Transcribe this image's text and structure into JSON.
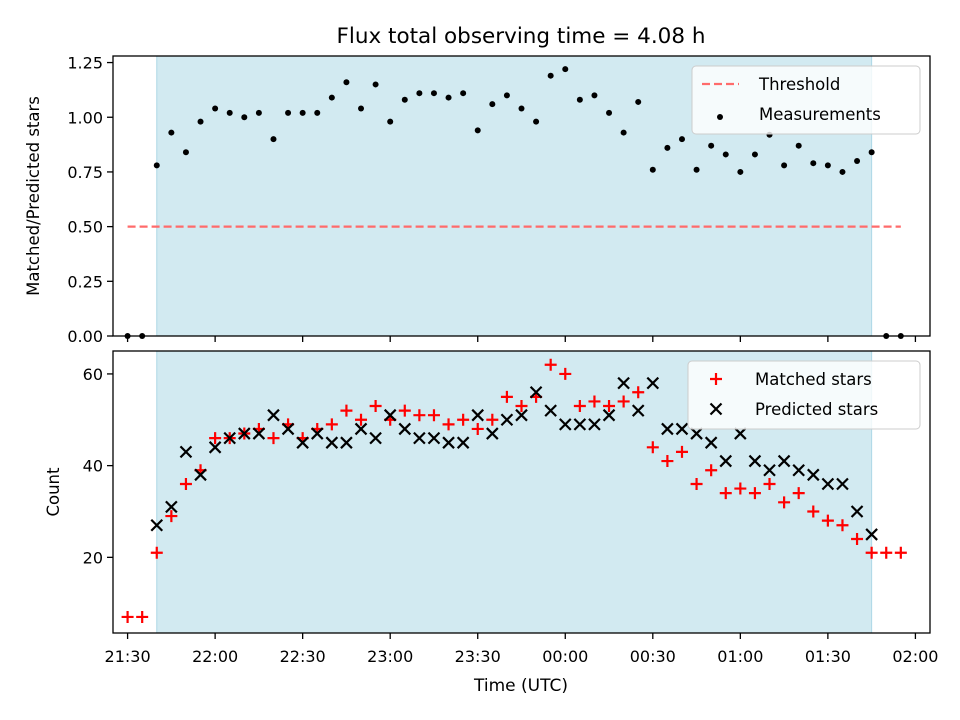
{
  "figure": {
    "title": "Flux total observing time = 4.08 h",
    "xlabel": "Time (UTC)"
  },
  "chart_data": [
    {
      "type": "scatter",
      "panel": "top",
      "ylabel": "Matched/Predicted stars",
      "xlim": [
        "21:25",
        "02:05"
      ],
      "ylim": [
        0,
        1.28
      ],
      "x_ticks": [
        "21:30",
        "22:00",
        "22:30",
        "23:00",
        "23:30",
        "00:00",
        "00:30",
        "01:00",
        "01:30",
        "02:00"
      ],
      "y_ticks": [
        "0.00",
        "0.25",
        "0.50",
        "0.75",
        "1.00",
        "1.25"
      ],
      "observing_window": {
        "start": "21:40",
        "end": "01:45",
        "color": "#add8e6"
      },
      "legend": "top-right",
      "series": [
        {
          "name": "Threshold",
          "style": "dashed-line",
          "color": "#ff6b6b",
          "x": [
            "21:30",
            "01:55"
          ],
          "y": [
            0.5,
            0.5
          ]
        },
        {
          "name": "Measurements",
          "style": "dot",
          "color": "#000000",
          "x": [
            "21:30",
            "21:35",
            "21:40",
            "21:45",
            "21:50",
            "21:55",
            "22:00",
            "22:05",
            "22:10",
            "22:15",
            "22:20",
            "22:25",
            "22:30",
            "22:35",
            "22:40",
            "22:45",
            "22:50",
            "22:55",
            "23:00",
            "23:05",
            "23:10",
            "23:15",
            "23:20",
            "23:25",
            "23:30",
            "23:35",
            "23:40",
            "23:45",
            "23:50",
            "23:55",
            "00:00",
            "00:05",
            "00:10",
            "00:15",
            "00:20",
            "00:25",
            "00:30",
            "00:35",
            "00:40",
            "00:45",
            "00:50",
            "00:55",
            "01:00",
            "01:05",
            "01:10",
            "01:15",
            "01:20",
            "01:25",
            "01:30",
            "01:35",
            "01:40",
            "01:45",
            "01:50",
            "01:55"
          ],
          "y": [
            0,
            0,
            0.78,
            0.93,
            0.84,
            0.98,
            1.04,
            1.02,
            1.0,
            1.02,
            0.9,
            1.02,
            1.02,
            1.02,
            1.09,
            1.16,
            1.04,
            1.15,
            0.98,
            1.08,
            1.11,
            1.11,
            1.09,
            1.11,
            0.94,
            1.06,
            1.1,
            1.04,
            0.98,
            1.19,
            1.22,
            1.08,
            1.1,
            1.02,
            0.93,
            1.07,
            0.76,
            0.86,
            0.9,
            0.76,
            0.87,
            0.83,
            0.75,
            0.83,
            0.92,
            0.78,
            0.87,
            0.79,
            0.78,
            0.75,
            0.8,
            0.84,
            0,
            0
          ]
        }
      ]
    },
    {
      "type": "scatter",
      "panel": "bottom",
      "ylabel": "Count",
      "xlabel": "Time (UTC)",
      "xlim": [
        "21:25",
        "02:05"
      ],
      "ylim": [
        3.5,
        65
      ],
      "x_ticks": [
        "21:30",
        "22:00",
        "22:30",
        "23:00",
        "23:30",
        "00:00",
        "00:30",
        "01:00",
        "01:30",
        "02:00"
      ],
      "y_ticks": [
        "20",
        "40",
        "60"
      ],
      "observing_window": {
        "start": "21:40",
        "end": "01:45",
        "color": "#add8e6"
      },
      "legend": "top-right",
      "series": [
        {
          "name": "Matched stars",
          "marker": "plus",
          "color": "#ff0000",
          "x": [
            "21:30",
            "21:35",
            "21:40",
            "21:45",
            "21:50",
            "21:55",
            "22:00",
            "22:05",
            "22:10",
            "22:15",
            "22:20",
            "22:25",
            "22:30",
            "22:35",
            "22:40",
            "22:45",
            "22:50",
            "22:55",
            "23:00",
            "23:05",
            "23:10",
            "23:15",
            "23:20",
            "23:25",
            "23:30",
            "23:35",
            "23:40",
            "23:45",
            "23:50",
            "23:55",
            "00:00",
            "00:05",
            "00:10",
            "00:15",
            "00:20",
            "00:25",
            "00:30",
            "00:35",
            "00:40",
            "00:45",
            "00:50",
            "00:55",
            "01:00",
            "01:05",
            "01:10",
            "01:15",
            "01:20",
            "01:25",
            "01:30",
            "01:35",
            "01:40",
            "01:45",
            "01:50",
            "01:55"
          ],
          "y": [
            7,
            7,
            21,
            29,
            36,
            39,
            46,
            46,
            47,
            48,
            46,
            49,
            46,
            48,
            49,
            52,
            50,
            53,
            50,
            52,
            51,
            51,
            49,
            50,
            48,
            50,
            55,
            53,
            55,
            62,
            60,
            53,
            54,
            53,
            54,
            56,
            44,
            41,
            43,
            36,
            39,
            34,
            35,
            34,
            36,
            32,
            34,
            30,
            28,
            27,
            24,
            21,
            21,
            21
          ]
        },
        {
          "name": "Predicted stars",
          "marker": "x",
          "color": "#000000",
          "x": [
            "21:40",
            "21:45",
            "21:50",
            "21:55",
            "22:00",
            "22:05",
            "22:10",
            "22:15",
            "22:20",
            "22:25",
            "22:30",
            "22:35",
            "22:40",
            "22:45",
            "22:50",
            "22:55",
            "23:00",
            "23:05",
            "23:10",
            "23:15",
            "23:20",
            "23:25",
            "23:30",
            "23:35",
            "23:40",
            "23:45",
            "23:50",
            "23:55",
            "00:00",
            "00:05",
            "00:10",
            "00:15",
            "00:20",
            "00:25",
            "00:30",
            "00:35",
            "00:40",
            "00:45",
            "00:50",
            "00:55",
            "01:00",
            "01:05",
            "01:10",
            "01:15",
            "01:20",
            "01:25",
            "01:30",
            "01:35",
            "01:40",
            "01:45"
          ],
          "y": [
            27,
            31,
            43,
            38,
            44,
            46,
            47,
            47,
            51,
            48,
            45,
            47,
            45,
            45,
            48,
            46,
            51,
            48,
            46,
            46,
            45,
            45,
            51,
            47,
            50,
            51,
            56,
            52,
            49,
            49,
            49,
            51,
            58,
            52,
            58,
            48,
            48,
            47,
            45,
            41,
            47,
            41,
            39,
            41,
            39,
            38,
            36,
            36,
            30,
            25
          ]
        }
      ]
    }
  ]
}
